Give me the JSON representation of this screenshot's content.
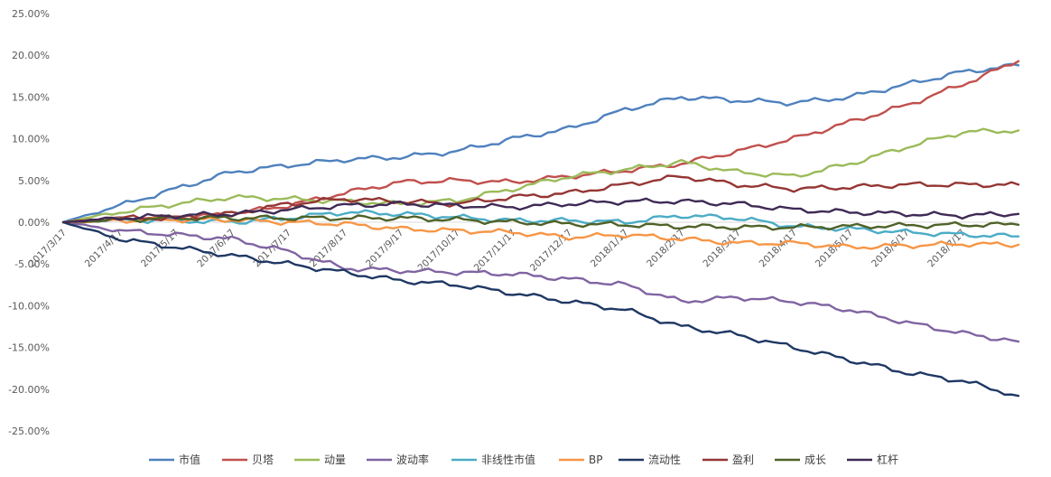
{
  "chart_data": {
    "type": "line",
    "title": "",
    "xlabel": "",
    "ylabel": "",
    "ylim": [
      -0.25,
      0.25
    ],
    "y_ticks": [
      "25.00%",
      "20.00%",
      "15.00%",
      "10.00%",
      "5.00%",
      "0.00%",
      "-5.00%",
      "-10.00%",
      "-15.00%",
      "-20.00%",
      "-25.00%"
    ],
    "y_tick_values": [
      0.25,
      0.2,
      0.15,
      0.1,
      0.05,
      0.0,
      -0.05,
      -0.1,
      -0.15,
      -0.2,
      -0.25
    ],
    "x_tick_labels": [
      "2017/3/17",
      "2017/4/17",
      "2017/5/17",
      "2017/6/17",
      "2017/7/17",
      "2017/8/17",
      "2017/9/17",
      "2017/10/17",
      "2017/11/17",
      "2017/12/17",
      "2018/1/17",
      "2018/2/17",
      "2018/3/17",
      "2018/4/17",
      "2018/5/17",
      "2018/6/17",
      "2018/7/17"
    ],
    "x": [
      "2017/3/17",
      "2017/4/17",
      "2017/5/17",
      "2017/6/17",
      "2017/7/17",
      "2017/8/17",
      "2017/9/17",
      "2017/10/17",
      "2017/11/17",
      "2017/12/17",
      "2018/1/17",
      "2018/2/17",
      "2018/3/17",
      "2018/4/17",
      "2018/5/17",
      "2018/6/17",
      "2018/7/17",
      "2018/7/31"
    ],
    "grid": false,
    "legend_position": "bottom",
    "series": [
      {
        "name": "市值",
        "color": "#4F81BD",
        "values": [
          0.0,
          0.02,
          0.04,
          0.06,
          0.068,
          0.075,
          0.078,
          0.085,
          0.1,
          0.112,
          0.135,
          0.15,
          0.146,
          0.143,
          0.15,
          0.165,
          0.18,
          0.188
        ]
      },
      {
        "name": "贝塔",
        "color": "#C0504D",
        "values": [
          0.0,
          0.005,
          0.005,
          0.01,
          0.02,
          0.035,
          0.048,
          0.05,
          0.048,
          0.055,
          0.062,
          0.07,
          0.085,
          0.1,
          0.12,
          0.14,
          0.165,
          0.193
        ]
      },
      {
        "name": "动量",
        "color": "#9BBB59",
        "values": [
          0.0,
          0.012,
          0.022,
          0.03,
          0.028,
          0.025,
          0.022,
          0.026,
          0.04,
          0.055,
          0.063,
          0.072,
          0.06,
          0.055,
          0.07,
          0.09,
          0.108,
          0.11
        ]
      },
      {
        "name": "波动率",
        "color": "#8064A2",
        "values": [
          0.0,
          -0.01,
          -0.015,
          -0.02,
          -0.035,
          -0.055,
          -0.058,
          -0.06,
          -0.062,
          -0.068,
          -0.075,
          -0.095,
          -0.09,
          -0.095,
          -0.105,
          -0.12,
          -0.133,
          -0.143
        ]
      },
      {
        "name": "非线性市值",
        "color": "#4BACC6",
        "values": [
          0.0,
          0.003,
          0.002,
          0.0,
          0.005,
          0.012,
          0.01,
          0.006,
          0.002,
          0.002,
          0.0,
          0.008,
          0.005,
          -0.005,
          -0.008,
          -0.012,
          -0.015,
          -0.017
        ]
      },
      {
        "name": "BP",
        "color": "#F79646",
        "values": [
          0.0,
          0.002,
          0.003,
          0.003,
          0.0,
          -0.002,
          -0.008,
          -0.01,
          -0.012,
          -0.018,
          -0.015,
          -0.02,
          -0.025,
          -0.025,
          -0.03,
          -0.028,
          -0.026,
          -0.027
        ]
      },
      {
        "name": "流动性",
        "color": "#1F3864",
        "values": [
          0.0,
          -0.02,
          -0.03,
          -0.04,
          -0.05,
          -0.06,
          -0.07,
          -0.075,
          -0.085,
          -0.095,
          -0.105,
          -0.125,
          -0.135,
          -0.15,
          -0.165,
          -0.18,
          -0.19,
          -0.208
        ]
      },
      {
        "name": "盈利",
        "color": "#943634",
        "values": [
          0.0,
          0.005,
          0.005,
          0.01,
          0.022,
          0.028,
          0.025,
          0.022,
          0.03,
          0.035,
          0.045,
          0.055,
          0.045,
          0.04,
          0.042,
          0.045,
          0.045,
          0.045
        ]
      },
      {
        "name": "成长",
        "color": "#4F6228",
        "values": [
          0.0,
          0.003,
          0.005,
          0.005,
          0.005,
          0.005,
          0.005,
          0.003,
          0.0,
          -0.002,
          -0.003,
          -0.005,
          -0.006,
          -0.006,
          -0.005,
          -0.004,
          -0.003,
          -0.003
        ]
      },
      {
        "name": "杠杆",
        "color": "#3F2A55",
        "values": [
          0.0,
          0.005,
          0.008,
          0.01,
          0.015,
          0.02,
          0.022,
          0.02,
          0.018,
          0.022,
          0.025,
          0.025,
          0.022,
          0.015,
          0.012,
          0.01,
          0.008,
          0.01
        ]
      }
    ]
  }
}
